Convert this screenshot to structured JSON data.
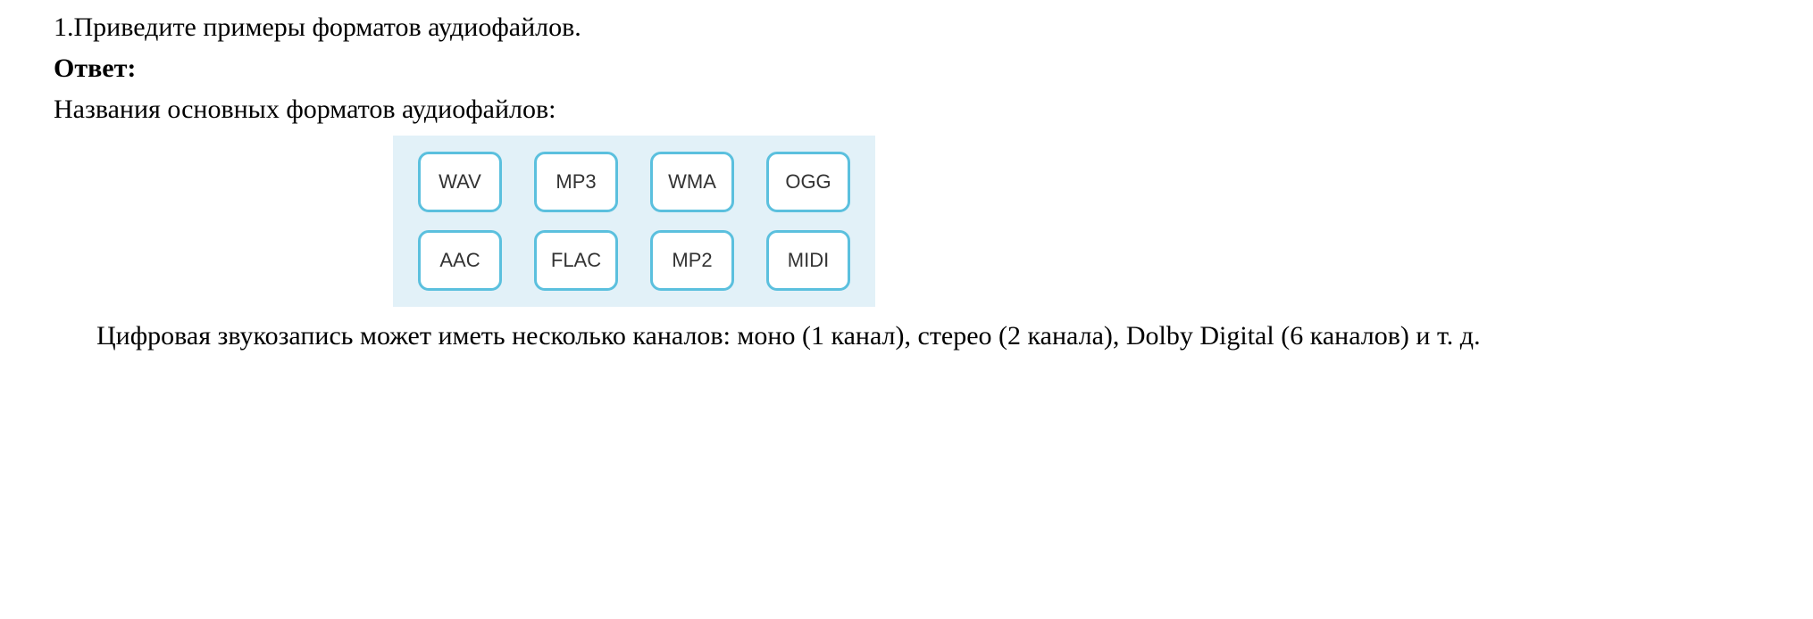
{
  "question": {
    "number": "1.",
    "text": "Приведите примеры форматов аудиофайлов."
  },
  "answer": {
    "label": "Ответ:",
    "intro": "Названия основных форматов аудиофайлов:"
  },
  "formats": {
    "row1": [
      {
        "label": "WAV"
      },
      {
        "label": "MP3"
      },
      {
        "label": "WMA"
      },
      {
        "label": "OGG"
      }
    ],
    "row2": [
      {
        "label": "AAC"
      },
      {
        "label": "FLAC"
      },
      {
        "label": "MP2"
      },
      {
        "label": "MIDI"
      }
    ],
    "background_color": "#e2f1f8",
    "box_border_color": "#5bc0de",
    "box_background": "#ffffff",
    "box_text_color": "#333333"
  },
  "conclusion": "Цифровая звукозапись может иметь несколько каналов: моно (1 канал), стерео (2 канала), Dolby Digital (6 каналов) и т. д."
}
